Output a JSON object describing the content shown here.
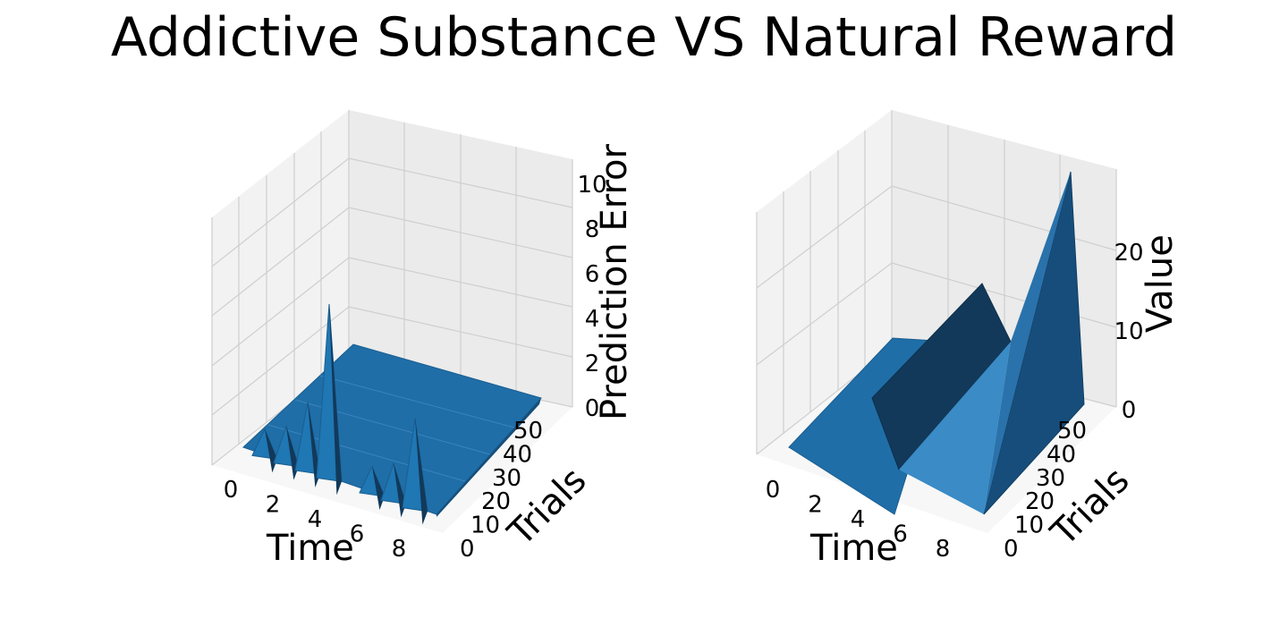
{
  "figure": {
    "title": "Addictive Substance VS Natural Reward"
  },
  "chart_data": [
    {
      "type": "surface3d",
      "xlabel": "Time",
      "ylabel": "Trials",
      "zlabel": "Prediction Error",
      "xlim": [
        0,
        9
      ],
      "ylim": [
        0,
        50
      ],
      "zlim": [
        0,
        10
      ],
      "xticks": [
        "0",
        "2",
        "4",
        "6",
        "8"
      ],
      "yticks": [
        "0",
        "10",
        "20",
        "30",
        "40",
        "50"
      ],
      "zticks": [
        "0",
        "2",
        "4",
        "6",
        "8",
        "10"
      ],
      "surface_color": "#1f77b4",
      "grid": true,
      "peaks": [
        {
          "time": 1,
          "trial": 3,
          "value": 1
        },
        {
          "time": 2,
          "trial": 3,
          "value": 1.5
        },
        {
          "time": 3,
          "trial": 3,
          "value": 3
        },
        {
          "time": 4,
          "trial": 3,
          "value": 8
        },
        {
          "time": 6,
          "trial": 3,
          "value": 1
        },
        {
          "time": 7,
          "trial": 3,
          "value": 1.5
        },
        {
          "time": 8,
          "trial": 3,
          "value": 4
        }
      ],
      "plateau_value": 0.8
    },
    {
      "type": "surface3d",
      "xlabel": "Time",
      "ylabel": "Trials",
      "zlabel": "Value",
      "xlim": [
        0,
        9
      ],
      "ylim": [
        0,
        50
      ],
      "zlim": [
        0,
        30
      ],
      "xticks": [
        "0",
        "2",
        "4",
        "6",
        "8"
      ],
      "yticks": [
        "0",
        "10",
        "20",
        "30",
        "40",
        "50"
      ],
      "zticks": [
        "0",
        "10",
        "20"
      ],
      "surface_color": "#1f77b4",
      "grid": true,
      "ridges": [
        {
          "time": 4,
          "trial": 50,
          "value": 15
        },
        {
          "time": 9,
          "trial": 50,
          "value": 30
        }
      ]
    }
  ]
}
